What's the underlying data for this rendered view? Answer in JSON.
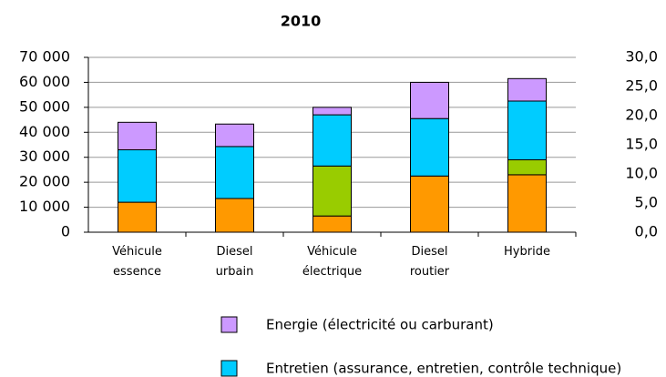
{
  "chart_data": {
    "type": "stacked_bar",
    "title": "2010",
    "categories": [
      "Véhicule\nessence",
      "Diesel\nurbain",
      "Véhicule\nélectrique",
      "Diesel\nroutier",
      "Hybride"
    ],
    "series": [
      {
        "color": "#ff9900",
        "values": [
          12000,
          13500,
          6500,
          22500,
          23000
        ]
      },
      {
        "color": "#99cc00",
        "values": [
          0,
          0,
          20000,
          0,
          6000
        ]
      },
      {
        "name": "Entretien (assurance, entretien, contrôle technique)",
        "color": "#00ccff",
        "values": [
          21000,
          20800,
          20500,
          23000,
          23500
        ]
      },
      {
        "name": "Energie (électricité ou carburant)",
        "color": "#cc99ff",
        "values": [
          11000,
          9000,
          3000,
          14500,
          9000
        ]
      }
    ],
    "ylim": [
      0,
      70000
    ],
    "yticks": [
      {
        "value": 0,
        "label": "0"
      },
      {
        "value": 10000,
        "label": "10 000"
      },
      {
        "value": 20000,
        "label": "20 000"
      },
      {
        "value": 30000,
        "label": "30 000"
      },
      {
        "value": 40000,
        "label": "40 000"
      },
      {
        "value": 50000,
        "label": "50 000"
      },
      {
        "value": 60000,
        "label": "60 000"
      },
      {
        "value": 70000,
        "label": "70 000"
      }
    ],
    "y2lim": [
      0,
      30
    ],
    "y2ticks": [
      {
        "value": 0,
        "label": "0,0"
      },
      {
        "value": 5,
        "label": "5,0"
      },
      {
        "value": 10,
        "label": "10,0"
      },
      {
        "value": 15,
        "label": "15,0"
      },
      {
        "value": 20,
        "label": "20,0"
      },
      {
        "value": 25,
        "label": "25,0"
      },
      {
        "value": 30,
        "label": "30,0"
      }
    ],
    "grid": true
  }
}
